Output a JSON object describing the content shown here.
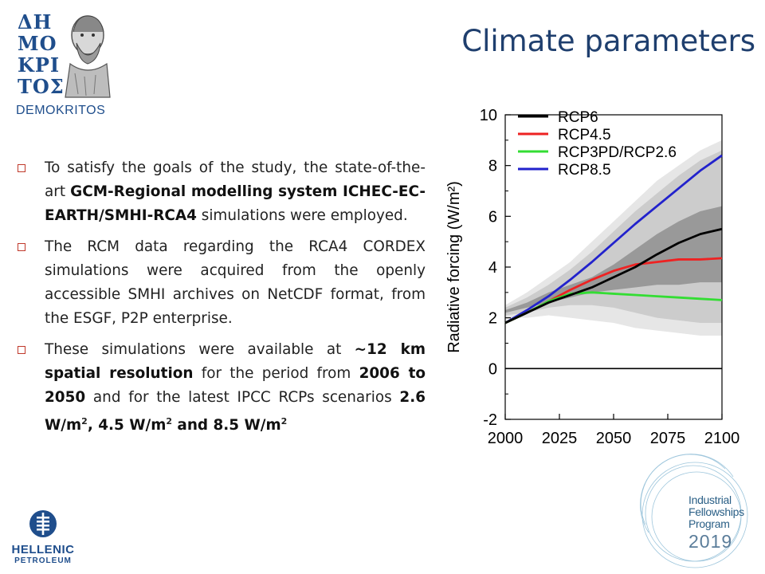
{
  "title": "Climate parameters",
  "logos": {
    "demokritos": {
      "mark_lines": [
        "ΔΗ",
        "ΜΟ",
        "ΚΡΙ",
        "ΤΟΣ"
      ],
      "name": "DEMOKRITOS"
    },
    "hellenic_petroleum": {
      "line1": "HELLENIC",
      "line2": "PETROLEUM"
    },
    "ifp": {
      "line1": "Industrial",
      "line2": "Fellowships",
      "line3": "Program",
      "year": "2019"
    }
  },
  "bullets": [
    {
      "segments": [
        {
          "text": "To satisfy the goals of the study, the state-of-the-art ",
          "bold": false
        },
        {
          "text": "GCM-Regional modelling system ICHEC-EC-EARTH/SMHI-RCA4",
          "bold": true
        },
        {
          "text": " simulations were employed.",
          "bold": false
        }
      ]
    },
    {
      "segments": [
        {
          "text": "The RCM data regarding the RCA4 CORDEX simulations were acquired from the openly accessible SMHI archives on NetCDF format, from the ESGF, P2P enterprise.",
          "bold": false
        }
      ]
    },
    {
      "segments": [
        {
          "text": "These simulations were available at ",
          "bold": false
        },
        {
          "text": "~12 km spatial resolution",
          "bold": true
        },
        {
          "text": " for the period from ",
          "bold": false
        },
        {
          "text": "2006 to 2050",
          "bold": true
        },
        {
          "text": " and for the latest IPCC RCPs scenarios ",
          "bold": false
        },
        {
          "text": "2.6 W/m",
          "bold": true
        },
        {
          "text": "2",
          "bold": true,
          "sup": true
        },
        {
          "text": ", 4.5 W/m",
          "bold": true
        },
        {
          "text": "2",
          "bold": true,
          "sup": true
        },
        {
          "text": " and 8.5 W/m",
          "bold": true
        },
        {
          "text": "2",
          "bold": true,
          "sup": true
        }
      ]
    }
  ],
  "chart_data": {
    "type": "line",
    "title": "",
    "xlabel": "",
    "ylabel": "Radiative forcing (W/m²)",
    "xlim": [
      2000,
      2100
    ],
    "ylim": [
      -2,
      10
    ],
    "xticks": [
      "2000",
      "2025",
      "2050",
      "2075",
      "2100"
    ],
    "yticks": [
      "-2",
      "0",
      "2",
      "4",
      "6",
      "8",
      "10"
    ],
    "legend_position": "top-left",
    "reference_line_y": 0,
    "x": [
      2000,
      2010,
      2020,
      2030,
      2040,
      2050,
      2060,
      2070,
      2080,
      2090,
      2100
    ],
    "series": [
      {
        "name": "RCP6",
        "color": "#000000",
        "values": [
          1.8,
          2.2,
          2.6,
          2.9,
          3.2,
          3.6,
          4.0,
          4.5,
          4.95,
          5.3,
          5.5
        ]
      },
      {
        "name": "RCP4.5",
        "color": "#ee2222",
        "values": [
          1.8,
          2.2,
          2.65,
          3.1,
          3.5,
          3.85,
          4.1,
          4.2,
          4.3,
          4.3,
          4.35
        ]
      },
      {
        "name": "RCP3PD/RCP2.6",
        "color": "#33dd33",
        "values": [
          1.8,
          2.2,
          2.65,
          2.95,
          3.0,
          2.95,
          2.9,
          2.85,
          2.8,
          2.75,
          2.7
        ]
      },
      {
        "name": "RCP8.5",
        "color": "#2222cc",
        "values": [
          1.8,
          2.3,
          2.85,
          3.5,
          4.2,
          4.95,
          5.7,
          6.4,
          7.1,
          7.8,
          8.4
        ]
      }
    ],
    "bands": [
      {
        "color": "#e6e6e6",
        "lower": [
          2.0,
          2.0,
          2.1,
          2.0,
          1.9,
          1.8,
          1.6,
          1.5,
          1.4,
          1.3,
          1.3
        ],
        "upper": [
          2.5,
          3.0,
          3.6,
          4.2,
          5.0,
          5.8,
          6.6,
          7.4,
          8.0,
          8.6,
          9.0
        ]
      },
      {
        "color": "#cccccc",
        "lower": [
          2.1,
          2.2,
          2.4,
          2.5,
          2.5,
          2.4,
          2.2,
          2.0,
          1.9,
          1.8,
          1.8
        ],
        "upper": [
          2.4,
          2.8,
          3.3,
          3.9,
          4.6,
          5.4,
          6.2,
          6.9,
          7.6,
          8.2,
          8.6
        ]
      },
      {
        "color": "#999999",
        "lower": [
          2.2,
          2.4,
          2.6,
          2.8,
          3.0,
          3.1,
          3.2,
          3.3,
          3.3,
          3.4,
          3.4
        ],
        "upper": [
          2.3,
          2.6,
          3.0,
          3.3,
          3.6,
          4.1,
          4.7,
          5.3,
          5.8,
          6.2,
          6.4
        ]
      }
    ]
  }
}
